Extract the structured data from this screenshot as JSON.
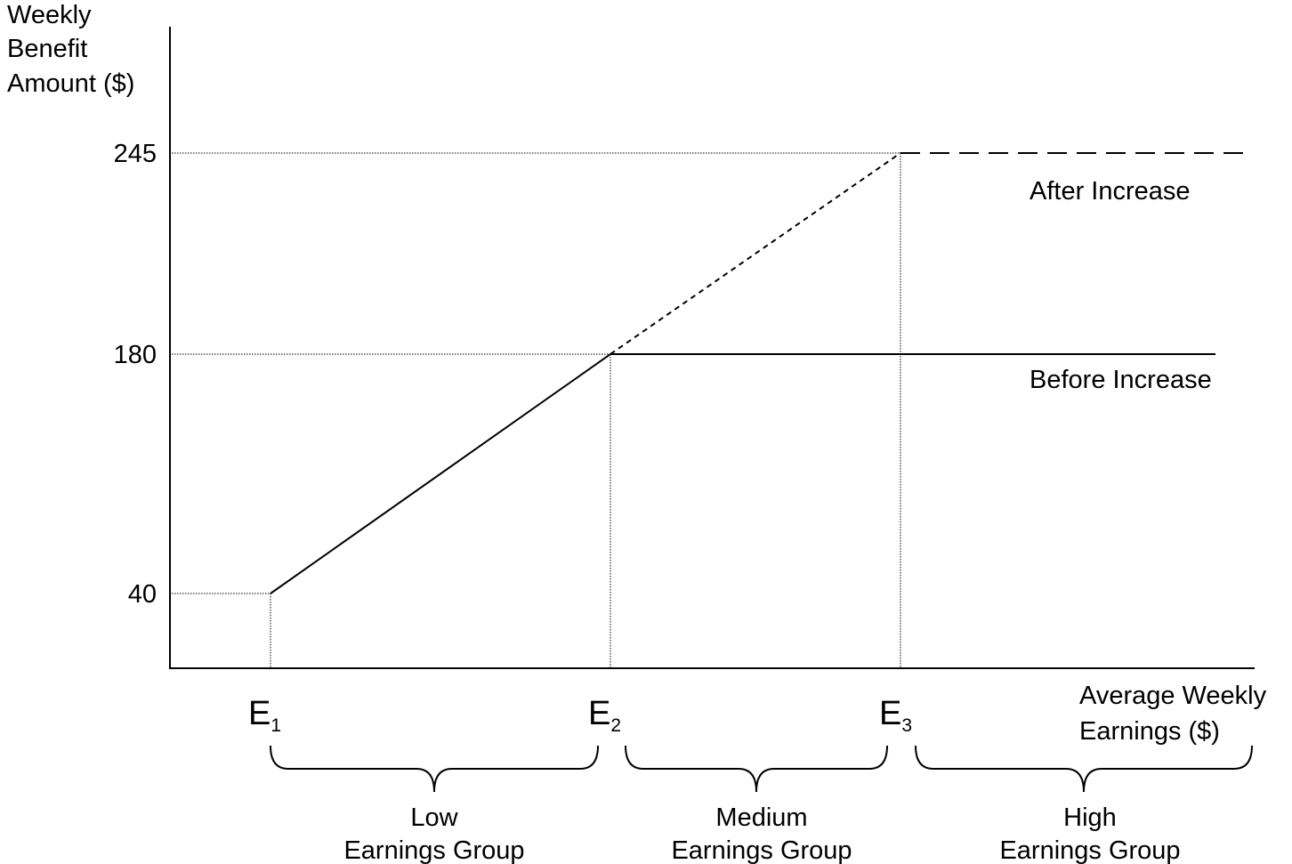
{
  "chart_data": {
    "type": "line",
    "title": "",
    "ylabel": [
      "Weekly",
      "Benefit",
      "Amount ($)"
    ],
    "xlabel": [
      "Average Weekly",
      "Earnings ($)"
    ],
    "y_ticks": [
      {
        "id": "y245",
        "label": "245",
        "value": 245
      },
      {
        "id": "y180",
        "label": "180",
        "value": 180
      },
      {
        "id": "y40",
        "label": "40",
        "value": 40
      }
    ],
    "x_ticks": [
      {
        "id": "e1",
        "base": "E",
        "sub": "1"
      },
      {
        "id": "e2",
        "base": "E",
        "sub": "2"
      },
      {
        "id": "e3",
        "base": "E",
        "sub": "3"
      }
    ],
    "series": [
      {
        "name": "Before Increase",
        "style": "solid",
        "points": [
          {
            "x": "E1",
            "y": 40
          },
          {
            "x": "E2",
            "y": 180
          },
          {
            "x": "end",
            "y": 180
          }
        ]
      },
      {
        "name": "After Increase",
        "style": "dashed",
        "points": [
          {
            "x": "E2",
            "y": 180
          },
          {
            "x": "E3",
            "y": 245
          },
          {
            "x": "end",
            "y": 245
          }
        ]
      }
    ],
    "groups": [
      {
        "id": "low",
        "line1": "Low",
        "line2": "Earnings Group",
        "from": "E1",
        "to": "E2"
      },
      {
        "id": "medium",
        "line1": "Medium",
        "line2": "Earnings Group",
        "from": "E2",
        "to": "E3"
      },
      {
        "id": "high",
        "line1": "High",
        "line2": "Earnings Group",
        "from": "E3",
        "to": "end"
      }
    ],
    "grid": false,
    "legend": "inline labels"
  }
}
